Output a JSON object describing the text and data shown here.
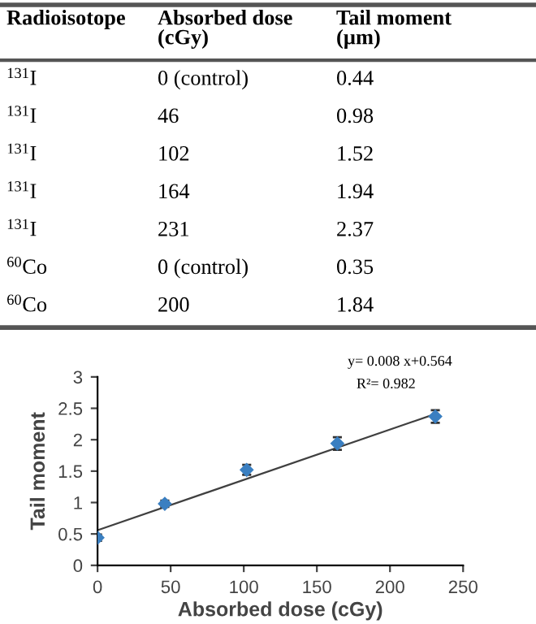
{
  "chart_data": [
    {
      "type": "other",
      "categories": [
        "Radioisotope",
        "Absorbed dose\n(cGy)",
        "Tail moment\n(µm)"
      ],
      "annotations": [
        "$^{131}$I",
        "0 (control)",
        "0.44",
        "$^{131}$I",
        "46",
        "0.98",
        "$^{131}$I",
        "102",
        "1.52",
        "$^{131}$I",
        "164",
        "1.94",
        "$^{131}$I",
        "231",
        "2.37",
        "$^{60}$Co",
        "0 (control)",
        "0.35",
        "$^{60}$Co",
        "200",
        "1.84"
      ]
    },
    {
      "type": "scatter",
      "xlabel": "Absorbed dose (cGy)",
      "ylabel": "Tail moment",
      "xlim": [
        0,
        250
      ],
      "xticks": [
        0,
        50,
        100,
        150,
        200,
        250
      ],
      "ylim": [
        0,
        3
      ],
      "yticks": [
        0,
        0.5,
        1,
        1.5,
        2,
        2.5,
        3
      ],
      "grid": false,
      "legend": false,
      "series": [
        {
          "type": "scatter",
          "marker": "diamond",
          "color": "#3a7fc1",
          "x": [
            0,
            46,
            102,
            164,
            231
          ],
          "values": [
            0.44,
            0.98,
            1.52,
            1.94,
            2.37
          ],
          "errors": [
            0.05,
            0.05,
            0.08,
            0.1,
            0.1
          ]
        },
        {
          "type": "line",
          "color": "#404040",
          "x": [
            0,
            231
          ],
          "values": [
            0.56,
            2.41
          ]
        }
      ],
      "annotations": [
        "y= 0.008 x+0.564",
        "R²= 0.982"
      ]
    }
  ]
}
